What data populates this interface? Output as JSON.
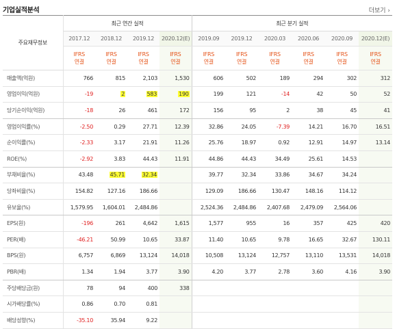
{
  "title": "기업실적분석",
  "more_label": "더보기",
  "more_icon": "chevron-right-icon",
  "row_header_label": "주요재무정보",
  "annual_header": "최근 연간 실적",
  "quarter_header": "최근 분기 실적",
  "periods": [
    "2017.12",
    "2018.12",
    "2019.12",
    "2020.12(E)",
    "2019.09",
    "2019.12",
    "2020.03",
    "2020.06",
    "2020.09",
    "2020.12(E)"
  ],
  "basis_line1": "IFRS",
  "basis_line2": "연결",
  "rows": [
    {
      "label": "매출액(억원)",
      "values": [
        "766",
        "815",
        "2,103",
        "1,530",
        "606",
        "502",
        "189",
        "294",
        "302",
        "312"
      ]
    },
    {
      "label": "영업이익(억원)",
      "values": [
        "-19",
        "2",
        "583",
        "190",
        "199",
        "121",
        "-14",
        "42",
        "50",
        "52"
      ]
    },
    {
      "label": "당기순이익(억원)",
      "values": [
        "-18",
        "26",
        "461",
        "172",
        "156",
        "95",
        "2",
        "38",
        "45",
        "41"
      ]
    },
    {
      "label": "영업이익률(%)",
      "values": [
        "-2.50",
        "0.29",
        "27.71",
        "12.39",
        "32.86",
        "24.05",
        "-7.39",
        "14.21",
        "16.70",
        "16.51"
      ]
    },
    {
      "label": "순이익률(%)",
      "values": [
        "-2.33",
        "3.17",
        "21.91",
        "11.26",
        "25.76",
        "18.97",
        "0.92",
        "12.91",
        "14.97",
        "13.14"
      ]
    },
    {
      "label": "ROE(%)",
      "values": [
        "-2.92",
        "3.83",
        "44.43",
        "11.91",
        "44.86",
        "44.43",
        "34.49",
        "25.61",
        "14.53",
        ""
      ]
    },
    {
      "label": "부채비율(%)",
      "values": [
        "43.48",
        "45.71",
        "32.34",
        "",
        "39.77",
        "32.34",
        "33.86",
        "34.67",
        "34.24",
        ""
      ]
    },
    {
      "label": "당좌비율(%)",
      "values": [
        "154.82",
        "127.16",
        "186.66",
        "",
        "129.09",
        "186.66",
        "130.47",
        "148.16",
        "114.12",
        ""
      ]
    },
    {
      "label": "유보율(%)",
      "values": [
        "1,579.95",
        "1,604.01",
        "2,484.86",
        "",
        "2,524.36",
        "2,484.86",
        "2,407.68",
        "2,479.09",
        "2,564.06",
        ""
      ]
    },
    {
      "label": "EPS(원)",
      "values": [
        "-196",
        "261",
        "4,642",
        "1,615",
        "1,577",
        "955",
        "16",
        "357",
        "425",
        "420"
      ]
    },
    {
      "label": "PER(배)",
      "values": [
        "-46.21",
        "50.99",
        "10.65",
        "33.87",
        "11.40",
        "10.65",
        "9.78",
        "16.65",
        "32.67",
        "130.11"
      ]
    },
    {
      "label": "BPS(원)",
      "values": [
        "6,757",
        "6,869",
        "13,124",
        "14,018",
        "10,508",
        "13,124",
        "12,757",
        "13,110",
        "13,531",
        "14,018"
      ]
    },
    {
      "label": "PBR(배)",
      "values": [
        "1.34",
        "1.94",
        "3.77",
        "3.90",
        "4.20",
        "3.77",
        "2.78",
        "3.60",
        "4.16",
        "3.90"
      ]
    },
    {
      "label": "주당배당금(원)",
      "values": [
        "78",
        "94",
        "400",
        "338",
        "",
        "",
        "",
        "",
        "",
        ""
      ]
    },
    {
      "label": "시가배당률(%)",
      "values": [
        "0.86",
        "0.70",
        "0.81",
        "",
        "",
        "",
        "",
        "",
        "",
        ""
      ]
    },
    {
      "label": "배당성향(%)",
      "values": [
        "-35.10",
        "35.94",
        "9.22",
        "",
        "",
        "",
        "",
        "",
        "",
        ""
      ]
    }
  ],
  "highlights": [
    [
      1,
      1
    ],
    [
      1,
      2
    ],
    [
      1,
      3
    ],
    [
      6,
      1
    ],
    [
      6,
      2
    ]
  ],
  "colors": {
    "negative": "#e02020",
    "basis": "#e5541a",
    "highlight": "#ffff33",
    "estimate_bg": "#f7faf2"
  }
}
